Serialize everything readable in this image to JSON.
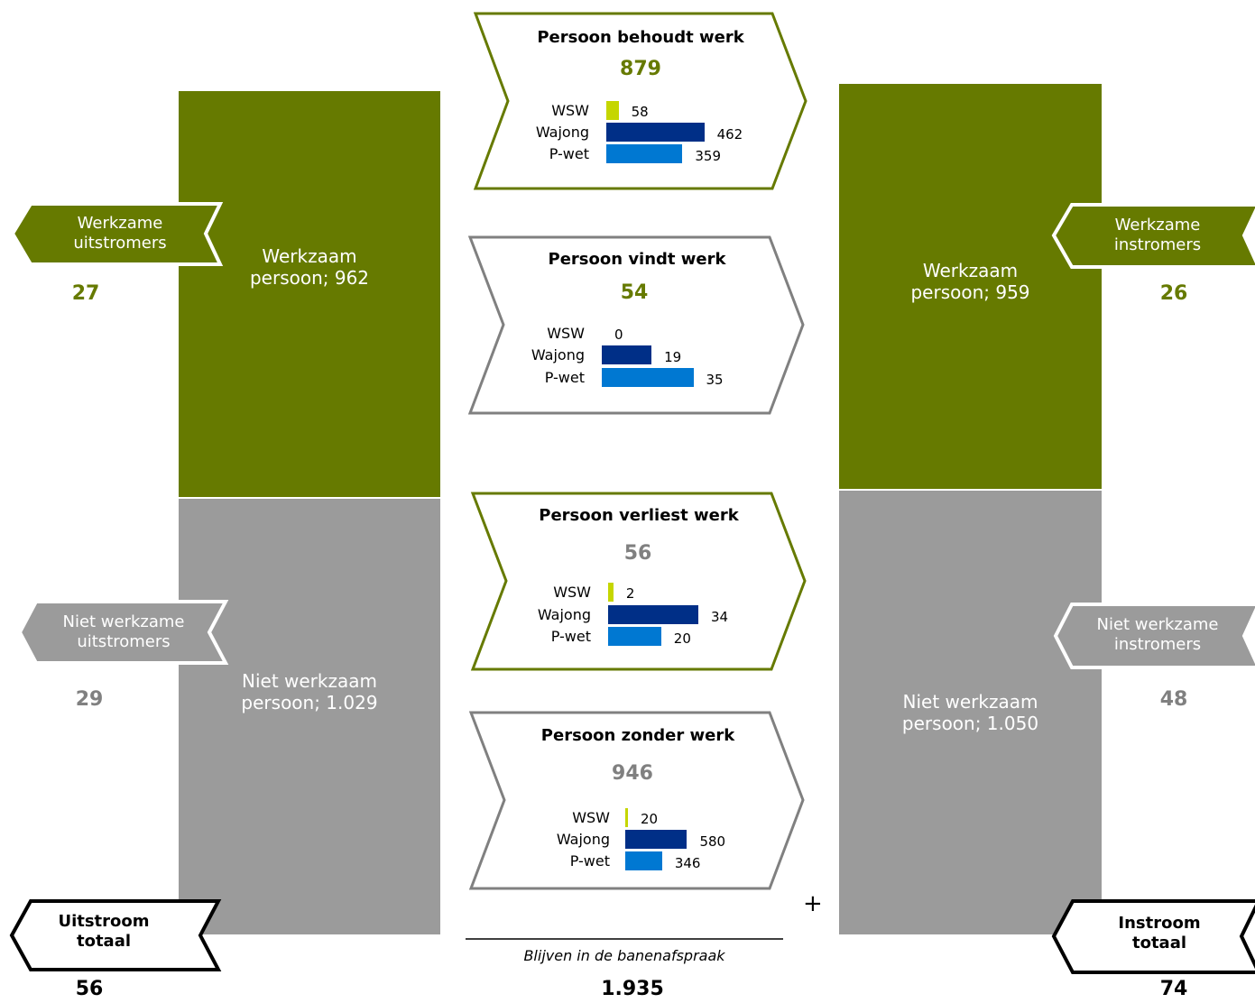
{
  "colors": {
    "green": "#667a00",
    "grey": "#9b9b9b",
    "dark_grey_text": "#808080",
    "wsw": "#c5d600",
    "wajong": "#002f87",
    "pwet": "#0078d2"
  },
  "left": {
    "working": {
      "label": "Werkzaam",
      "value_line": "persoon;  962"
    },
    "not_working": {
      "label": "Niet werkzaam",
      "value_line": "persoon;  1.029"
    },
    "working_out": {
      "line1": "Werkzame",
      "line2": "uitstromers",
      "value": "27"
    },
    "not_working_out": {
      "line1": "Niet werkzame",
      "line2": "uitstromers",
      "value": "29"
    },
    "total": {
      "line1": "Uitstroom",
      "line2": "totaal",
      "value": "56"
    }
  },
  "right": {
    "working": {
      "label": "Werkzaam",
      "value_line": "persoon;  959"
    },
    "not_working": {
      "label": "Niet werkzaam",
      "value_line": "persoon;  1.050"
    },
    "working_in": {
      "line1": "Werkzame",
      "line2": "instromers",
      "value": "26"
    },
    "not_working_in": {
      "line1": "Niet werkzame",
      "line2": "instromers",
      "value": "48"
    },
    "total": {
      "line1": "Instroom",
      "line2": "totaal",
      "value": "74"
    }
  },
  "panels": [
    {
      "title": "Persoon behoudt werk",
      "total": "879",
      "rows": [
        {
          "label": "WSW",
          "value": 58
        },
        {
          "label": "Wajong",
          "value": 462
        },
        {
          "label": "P-wet",
          "value": 359
        }
      ]
    },
    {
      "title": "Persoon vindt werk",
      "total": "54",
      "rows": [
        {
          "label": "WSW",
          "value": 0
        },
        {
          "label": "Wajong",
          "value": 19
        },
        {
          "label": "P-wet",
          "value": 35
        }
      ]
    },
    {
      "title": "Persoon verliest werk",
      "total": "56",
      "rows": [
        {
          "label": "WSW",
          "value": 2
        },
        {
          "label": "Wajong",
          "value": 34
        },
        {
          "label": "P-wet",
          "value": 20
        }
      ]
    },
    {
      "title": "Persoon zonder werk",
      "total": "946",
      "rows": [
        {
          "label": "WSW",
          "value": 20
        },
        {
          "label": "Wajong",
          "value": 580
        },
        {
          "label": "P-wet",
          "value": 346
        }
      ]
    }
  ],
  "bottom": {
    "plus": "+",
    "caption": "Blijven in de banenafspraak",
    "value": "1.935"
  }
}
